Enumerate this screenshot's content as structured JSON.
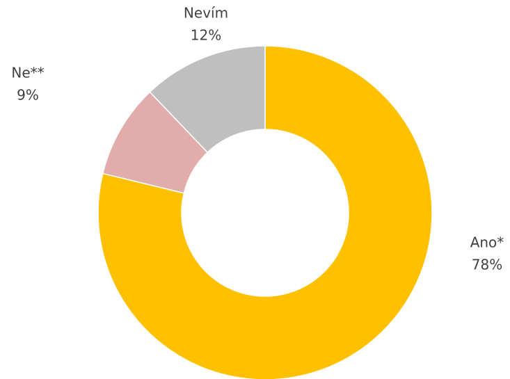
{
  "chart_data": {
    "type": "donut",
    "categories": [
      "Ano*",
      "Ne**",
      "Nevím"
    ],
    "values": [
      78,
      9,
      12
    ],
    "value_labels": [
      "78%",
      "9%",
      "12%"
    ],
    "colors": [
      "#FFC000",
      "#E2ACAA",
      "#BFBFBF"
    ]
  }
}
